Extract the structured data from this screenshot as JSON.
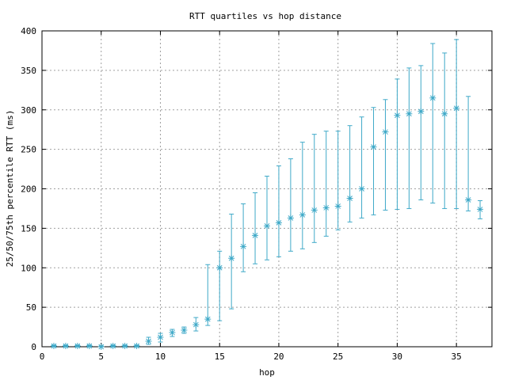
{
  "chart_data": {
    "type": "scatter",
    "title": "RTT quartiles vs hop distance",
    "xlabel": "hop",
    "ylabel": "25/50/75th percentile RTT (ms)",
    "xlim": [
      0,
      38
    ],
    "ylim": [
      0,
      400
    ],
    "xticks": [
      0,
      5,
      10,
      15,
      20,
      25,
      30,
      35
    ],
    "yticks": [
      0,
      50,
      100,
      150,
      200,
      250,
      300,
      350,
      400
    ],
    "grid": true,
    "series_color": "#3fa9c8",
    "points": [
      {
        "hop": 1,
        "p25": 0,
        "median": 1,
        "p75": 2
      },
      {
        "hop": 2,
        "p25": 0,
        "median": 1,
        "p75": 2
      },
      {
        "hop": 3,
        "p25": 0,
        "median": 1,
        "p75": 2
      },
      {
        "hop": 4,
        "p25": 0,
        "median": 1,
        "p75": 2
      },
      {
        "hop": 5,
        "p25": 0,
        "median": 0,
        "p75": 1
      },
      {
        "hop": 6,
        "p25": 0,
        "median": 1,
        "p75": 2
      },
      {
        "hop": 7,
        "p25": 0,
        "median": 1,
        "p75": 2
      },
      {
        "hop": 8,
        "p25": 0,
        "median": 1,
        "p75": 2
      },
      {
        "hop": 9,
        "p25": 3,
        "median": 7,
        "p75": 12
      },
      {
        "hop": 10,
        "p25": 6,
        "median": 12,
        "p75": 17
      },
      {
        "hop": 11,
        "p25": 13,
        "median": 18,
        "p75": 22
      },
      {
        "hop": 12,
        "p25": 17,
        "median": 21,
        "p75": 25
      },
      {
        "hop": 13,
        "p25": 20,
        "median": 28,
        "p75": 37
      },
      {
        "hop": 14,
        "p25": 27,
        "median": 35,
        "p75": 104
      },
      {
        "hop": 15,
        "p25": 33,
        "median": 100,
        "p75": 121
      },
      {
        "hop": 16,
        "p25": 48,
        "median": 112,
        "p75": 168
      },
      {
        "hop": 17,
        "p25": 95,
        "median": 127,
        "p75": 181
      },
      {
        "hop": 18,
        "p25": 105,
        "median": 141,
        "p75": 195
      },
      {
        "hop": 19,
        "p25": 110,
        "median": 153,
        "p75": 216
      },
      {
        "hop": 20,
        "p25": 114,
        "median": 157,
        "p75": 229
      },
      {
        "hop": 21,
        "p25": 121,
        "median": 163,
        "p75": 238
      },
      {
        "hop": 22,
        "p25": 124,
        "median": 167,
        "p75": 259
      },
      {
        "hop": 23,
        "p25": 132,
        "median": 173,
        "p75": 269
      },
      {
        "hop": 24,
        "p25": 140,
        "median": 176,
        "p75": 273
      },
      {
        "hop": 25,
        "p25": 148,
        "median": 178,
        "p75": 273
      },
      {
        "hop": 26,
        "p25": 158,
        "median": 188,
        "p75": 280
      },
      {
        "hop": 27,
        "p25": 163,
        "median": 200,
        "p75": 291
      },
      {
        "hop": 28,
        "p25": 167,
        "median": 253,
        "p75": 303
      },
      {
        "hop": 29,
        "p25": 173,
        "median": 272,
        "p75": 313
      },
      {
        "hop": 30,
        "p25": 174,
        "median": 293,
        "p75": 339
      },
      {
        "hop": 31,
        "p25": 175,
        "median": 295,
        "p75": 353
      },
      {
        "hop": 32,
        "p25": 186,
        "median": 298,
        "p75": 356
      },
      {
        "hop": 33,
        "p25": 182,
        "median": 315,
        "p75": 384
      },
      {
        "hop": 34,
        "p25": 175,
        "median": 295,
        "p75": 372
      },
      {
        "hop": 35,
        "p25": 175,
        "median": 302,
        "p75": 389
      },
      {
        "hop": 36,
        "p25": 172,
        "median": 186,
        "p75": 317
      },
      {
        "hop": 37,
        "p25": 162,
        "median": 174,
        "p75": 185
      }
    ]
  }
}
